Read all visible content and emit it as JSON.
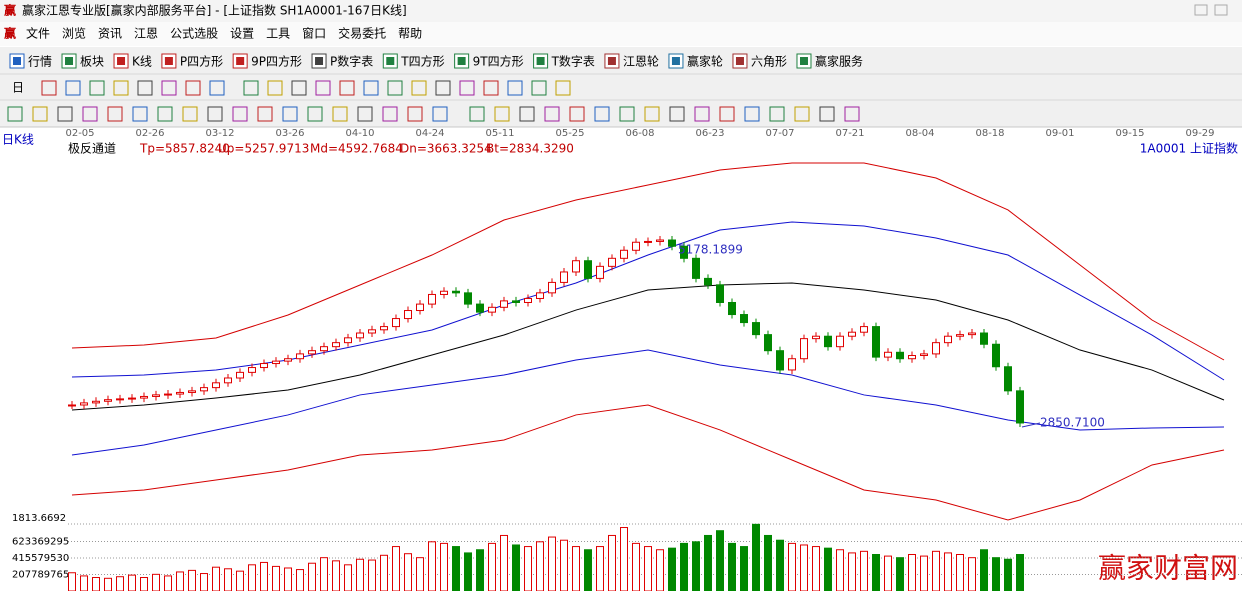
{
  "window": {
    "title": "赢家江恩专业版[赢家内部服务平台] - [上证指数  SH1A0001-167日K线]",
    "menu": [
      "文件",
      "浏览",
      "资讯",
      "江恩",
      "公式选股",
      "设置",
      "工具",
      "窗口",
      "交易委托",
      "帮助"
    ],
    "toolbar": [
      "行情",
      "板块",
      "K线",
      "P四方形",
      "9P四方形",
      "P数字表",
      "T四方形",
      "9T四方形",
      "T数字表",
      "江恩轮",
      "赢家轮",
      "六角形",
      "赢家服务"
    ],
    "period_button": "日"
  },
  "chart": {
    "type": "candlestick",
    "period_label": "日K线",
    "indicator_name": "极反通道",
    "indicator_values": [
      "Tp=5857.8240",
      "Up=5257.9713",
      "Md=4592.7684",
      "Dn=3663.3254",
      "Bt=2834.3290"
    ],
    "symbol": "1A0001  上证指数",
    "dates": [
      "02-05",
      "02-26",
      "03-12",
      "03-26",
      "04-10",
      "04-24",
      "05-11",
      "05-25",
      "06-08",
      "06-23",
      "07-07",
      "07-21",
      "08-04",
      "08-18",
      "09-01",
      "09-15",
      "09-29"
    ],
    "high_label": "5178.1899",
    "low_label": "2850.7100",
    "price_ylim": [
      1692,
      6174
    ],
    "closes": [
      3124,
      3150,
      3170,
      3190,
      3200,
      3210,
      3230,
      3250,
      3260,
      3280,
      3300,
      3340,
      3400,
      3460,
      3530,
      3590,
      3640,
      3670,
      3700,
      3760,
      3800,
      3850,
      3900,
      3960,
      4020,
      4060,
      4100,
      4200,
      4300,
      4380,
      4500,
      4540,
      4520,
      4380,
      4280,
      4340,
      4420,
      4400,
      4450,
      4520,
      4650,
      4780,
      4920,
      4700,
      4850,
      4950,
      5050,
      5150,
      5160,
      5178,
      5100,
      4950,
      4700,
      4620,
      4400,
      4250,
      4150,
      4000,
      3800,
      3560,
      3700,
      3950,
      3980,
      3850,
      3980,
      4030,
      4100,
      3720,
      3780,
      3700,
      3740,
      3760,
      3900,
      3980,
      4000,
      4020,
      3880,
      3600,
      3300,
      2900
    ],
    "band_index": [
      0,
      6,
      12,
      18,
      24,
      30,
      36,
      42,
      48,
      54,
      60,
      66,
      72,
      78,
      84,
      90,
      96
    ],
    "bands": [
      {
        "name": "Tp",
        "color": "#d40000",
        "values": [
          3833,
          3871,
          3958,
          4244,
          4618,
          4991,
          5427,
          5676,
          5863,
          6050,
          6137,
          6137,
          5950,
          5552,
          4867,
          4182,
          3684
        ]
      },
      {
        "name": "Up",
        "color": "#1010d0",
        "values": [
          3472,
          3497,
          3559,
          3684,
          3871,
          4058,
          4369,
          4643,
          4991,
          5302,
          5402,
          5352,
          5203,
          4991,
          4493,
          3995,
          3435
        ]
      },
      {
        "name": "Md",
        "color": "#000000",
        "values": [
          3062,
          3124,
          3211,
          3310,
          3497,
          3746,
          3995,
          4306,
          4555,
          4618,
          4643,
          4555,
          4431,
          4182,
          3808,
          3559,
          3186
        ]
      },
      {
        "name": "Dn",
        "color": "#1010d0",
        "values": [
          2501,
          2626,
          2813,
          3000,
          3249,
          3373,
          3497,
          3684,
          3808,
          3622,
          3497,
          3249,
          3124,
          2937,
          2813,
          2838,
          2850
        ]
      },
      {
        "name": "Bt",
        "color": "#d40000",
        "values": [
          2003,
          2066,
          2190,
          2315,
          2501,
          2563,
          2688,
          3000,
          3124,
          2813,
          2439,
          2066,
          1941,
          1692,
          1941,
          2377,
          2563
        ]
      }
    ],
    "volume_top_label": "1813.6692",
    "volume_ylim": [
      0,
      920000000
    ],
    "volume_ticks": [
      207789765,
      415579530,
      623369295
    ],
    "volumes": [
      230000000,
      190000000,
      170000000,
      160000000,
      180000000,
      200000000,
      170000000,
      210000000,
      190000000,
      240000000,
      260000000,
      220000000,
      300000000,
      280000000,
      250000000,
      330000000,
      360000000,
      310000000,
      290000000,
      270000000,
      350000000,
      420000000,
      380000000,
      330000000,
      400000000,
      390000000,
      450000000,
      560000000,
      470000000,
      420000000,
      620000000,
      600000000,
      560000000,
      480000000,
      520000000,
      600000000,
      700000000,
      580000000,
      560000000,
      620000000,
      680000000,
      640000000,
      560000000,
      520000000,
      560000000,
      700000000,
      800000000,
      600000000,
      560000000,
      520000000,
      540000000,
      600000000,
      620000000,
      700000000,
      760000000,
      600000000,
      560000000,
      840000000,
      700000000,
      640000000,
      600000000,
      580000000,
      560000000,
      540000000,
      520000000,
      480000000,
      500000000,
      460000000,
      440000000,
      420000000,
      460000000,
      440000000,
      500000000,
      480000000,
      460000000,
      420000000,
      520000000,
      420000000,
      400000000,
      460000000
    ],
    "up_color": "#e00000",
    "down_color": "#008800"
  },
  "watermark": "赢家财富网"
}
